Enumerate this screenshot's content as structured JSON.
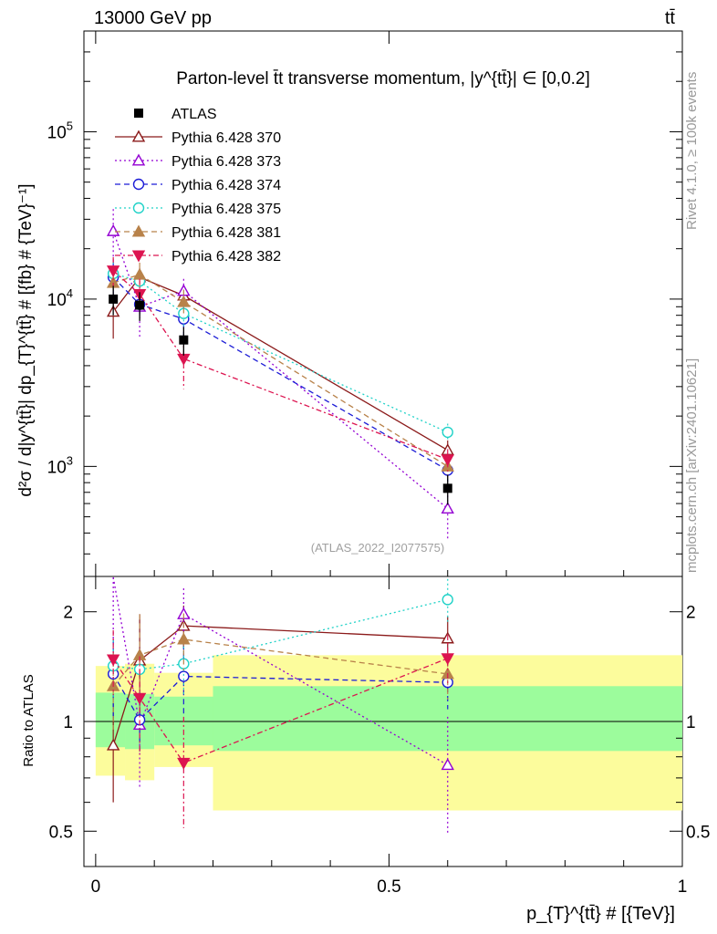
{
  "header": {
    "energy": "13000 GeV pp",
    "process": "tt̄"
  },
  "side_labels": {
    "rivet": "Rivet 4.1.0, ≥ 100k events",
    "mcplots": "mcplots.cern.ch [arXiv:2401.10621]"
  },
  "colors": {
    "ATLAS": "#000000",
    "p370": "#8b1a1a",
    "p373": "#9400d3",
    "p374": "#1c1cd6",
    "p375": "#20d2c8",
    "p381": "#b8824a",
    "p382": "#dc1450",
    "band_green": "#9cfc9c",
    "band_yellow": "#fcfc9c"
  },
  "chart_data": [
    {
      "type": "line",
      "panel": "main",
      "title": "Parton-level t̄t transverse momentum, |y^{tt̄}| ∈ [0,0.2]",
      "analysis_tag": "(ATLAS_2022_I2077575)",
      "ylabel": "d²σ / d|y^{tt̄}| dp_{T}^{tt̄} # [{fb} # {TeV}⁻¹]",
      "yscale": "log",
      "ylim": [
        220,
        400000
      ],
      "xlim": [
        -0.02,
        1.0
      ],
      "ytick_labels": [
        "10^3",
        "10^4",
        "10^5"
      ],
      "x": [
        0.03,
        0.075,
        0.15,
        0.6
      ],
      "data": {
        "name": "ATLAS",
        "values": [
          10000,
          9200,
          5700,
          740
        ],
        "err_lo": [
          2000,
          1800,
          1100,
          150
        ],
        "err_hi": [
          2000,
          1800,
          1100,
          150
        ]
      },
      "series": [
        {
          "name": "Pythia 6.428 370",
          "marker": "triangle-up-open",
          "dash": "solid",
          "values": [
            8400,
            13500,
            10500,
            1250
          ],
          "err": [
            2600,
            1800,
            1500,
            180
          ]
        },
        {
          "name": "Pythia 6.428 373",
          "marker": "triangle-up-open",
          "dash": "dot",
          "values": [
            25500,
            9000,
            11200,
            560
          ],
          "err": [
            9000,
            3200,
            2000,
            200
          ]
        },
        {
          "name": "Pythia 6.428 374",
          "marker": "circle-open",
          "dash": "dash",
          "values": [
            13500,
            9300,
            7600,
            950
          ],
          "err": [
            3300,
            1700,
            1700,
            140
          ]
        },
        {
          "name": "Pythia 6.428 375",
          "marker": "circle-open",
          "dash": "dot",
          "values": [
            14200,
            12800,
            8200,
            1600
          ],
          "err": [
            2500,
            1600,
            1500,
            200
          ]
        },
        {
          "name": "Pythia 6.428 381",
          "marker": "triangle-up-filled",
          "dash": "dash",
          "values": [
            12500,
            14000,
            9600,
            1000
          ],
          "err": [
            3000,
            2500,
            1800,
            150
          ]
        },
        {
          "name": "Pythia 6.428 382",
          "marker": "triangle-down-filled",
          "dash": "dashdot",
          "values": [
            14800,
            10700,
            4400,
            1100
          ],
          "err": [
            3000,
            2500,
            1500,
            170
          ]
        }
      ]
    },
    {
      "type": "line",
      "panel": "ratio",
      "ylabel": "Ratio to ATLAS",
      "xlabel": "p_{T}^{tt̄} # [{TeV}]",
      "yscale": "log",
      "ylim": [
        0.4,
        2.5
      ],
      "xlim": [
        -0.02,
        1.0
      ],
      "ytick_labels": [
        "0.5",
        "1",
        "2"
      ],
      "xtick_labels": [
        "0",
        "0.5",
        "1"
      ],
      "reference": 1,
      "bands": [
        {
          "x0": 0.0,
          "x1": 0.05,
          "green": [
            0.85,
            1.2
          ],
          "yellow": [
            0.71,
            1.42
          ]
        },
        {
          "x0": 0.05,
          "x1": 0.1,
          "green": [
            0.84,
            1.19
          ],
          "yellow": [
            0.69,
            1.44
          ]
        },
        {
          "x0": 0.1,
          "x1": 0.2,
          "green": [
            0.86,
            1.17
          ],
          "yellow": [
            0.75,
            1.36
          ]
        },
        {
          "x0": 0.2,
          "x1": 1.0,
          "green": [
            0.83,
            1.25
          ],
          "yellow": [
            0.57,
            1.52
          ]
        }
      ],
      "series": [
        {
          "name": "Pythia 6.428 370",
          "values": [
            0.86,
            1.47,
            1.83,
            1.69
          ],
          "err": [
            0.26,
            0.5,
            0.25,
            0.25
          ]
        },
        {
          "name": "Pythia 6.428 373",
          "values": [
            2.55,
            0.98,
            1.97,
            0.76
          ],
          "err": [
            0.9,
            0.32,
            0.35,
            0.27
          ]
        },
        {
          "name": "Pythia 6.428 374",
          "values": [
            1.35,
            1.01,
            1.33,
            1.28
          ],
          "err": [
            0.33,
            0.2,
            0.3,
            0.2
          ]
        },
        {
          "name": "Pythia 6.428 375",
          "values": [
            1.42,
            1.39,
            1.44,
            2.16
          ],
          "err": [
            0.25,
            0.18,
            0.26,
            0.3
          ]
        },
        {
          "name": "Pythia 6.428 381",
          "values": [
            1.25,
            1.52,
            1.68,
            1.35
          ],
          "err": [
            0.3,
            0.45,
            0.3,
            0.2
          ]
        },
        {
          "name": "Pythia 6.428 382",
          "values": [
            1.48,
            1.16,
            0.77,
            1.49
          ],
          "err": [
            0.3,
            0.35,
            0.26,
            0.24
          ]
        }
      ]
    }
  ]
}
